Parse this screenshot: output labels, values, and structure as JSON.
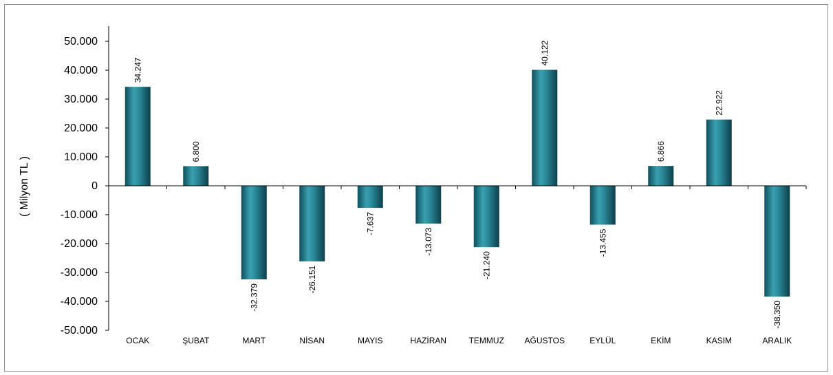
{
  "chart_data": {
    "type": "bar",
    "categories": [
      "OCAK",
      "ŞUBAT",
      "MART",
      "NİSAN",
      "MAYIS",
      "HAZİRAN",
      "TEMMUZ",
      "AĞUSTOS",
      "EYLÜL",
      "EKİM",
      "KASIM",
      "ARALIK"
    ],
    "values": [
      34247,
      6800,
      -32379,
      -26151,
      -7637,
      -13073,
      -21240,
      40122,
      -13455,
      6866,
      22922,
      -38350
    ],
    "value_labels": [
      "34.247",
      "6.800",
      "-32.379",
      "-26.151",
      "-7.637",
      "-13.073",
      "-21.240",
      "40.122",
      "-13.455",
      "6.866",
      "22.922",
      "-38.350"
    ],
    "ylabel": "( Milyon TL )",
    "ylim": [
      -50000,
      50000
    ],
    "yticks": [
      50000,
      40000,
      30000,
      20000,
      10000,
      0,
      -10000,
      -20000,
      -30000,
      -40000,
      -50000
    ],
    "ytick_labels": [
      "50.000",
      "40.000",
      "30.000",
      "20.000",
      "10.000",
      "0",
      "-10.000",
      "-20.000",
      "-30.000",
      "-40.000",
      "-50.000"
    ],
    "grid": false,
    "legend": "none",
    "bar_color": "#2b8a9a"
  }
}
